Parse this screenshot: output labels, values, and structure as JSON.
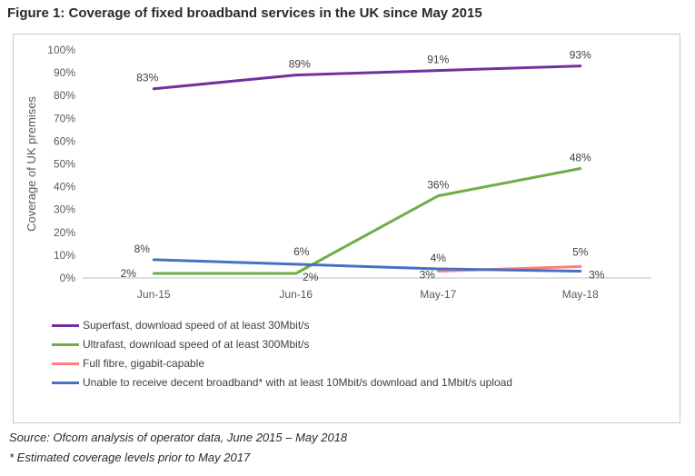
{
  "figure": {
    "title": "Figure 1: Coverage of fixed broadband services in the UK since May 2015",
    "source": "Source: Ofcom analysis of operator data, June 2015 – May 2018",
    "footnote": "* Estimated coverage levels prior to May 2017"
  },
  "chart_data": {
    "type": "line",
    "x": [
      "Jun-15",
      "Jun-16",
      "May-17",
      "May-18"
    ],
    "ylabel": "Coverage of UK premises",
    "ylim": [
      0,
      100
    ],
    "yticks": [
      0,
      10,
      20,
      30,
      40,
      50,
      60,
      70,
      80,
      90,
      100
    ],
    "ytick_labels": [
      "0%",
      "10%",
      "20%",
      "30%",
      "40%",
      "50%",
      "60%",
      "70%",
      "80%",
      "90%",
      "100%"
    ],
    "grid": false,
    "legend_position": "bottom",
    "series": [
      {
        "name": "Superfast, download speed of at least 30Mbit/s",
        "color": "#7030a0",
        "values": [
          83,
          89,
          91,
          93
        ],
        "labels": [
          "83%",
          "89%",
          "91%",
          "93%"
        ]
      },
      {
        "name": "Ultrafast, download speed of at least 300Mbit/s",
        "color": "#70ad47",
        "values": [
          2,
          2,
          36,
          48
        ],
        "labels": [
          "2%",
          "2%",
          "36%",
          "48%"
        ]
      },
      {
        "name": "Full fibre, gigabit-capable",
        "color": "#ff7c80",
        "values": [
          null,
          null,
          3,
          5
        ],
        "labels": [
          "",
          "",
          "3%",
          "5%"
        ]
      },
      {
        "name": "Unable to receive decent broadband* with at least 10Mbit/s download and 1Mbit/s upload",
        "color": "#4472c4",
        "values": [
          8,
          6,
          4,
          3
        ],
        "labels": [
          "8%",
          "6%",
          "4%",
          "3%"
        ]
      }
    ]
  }
}
